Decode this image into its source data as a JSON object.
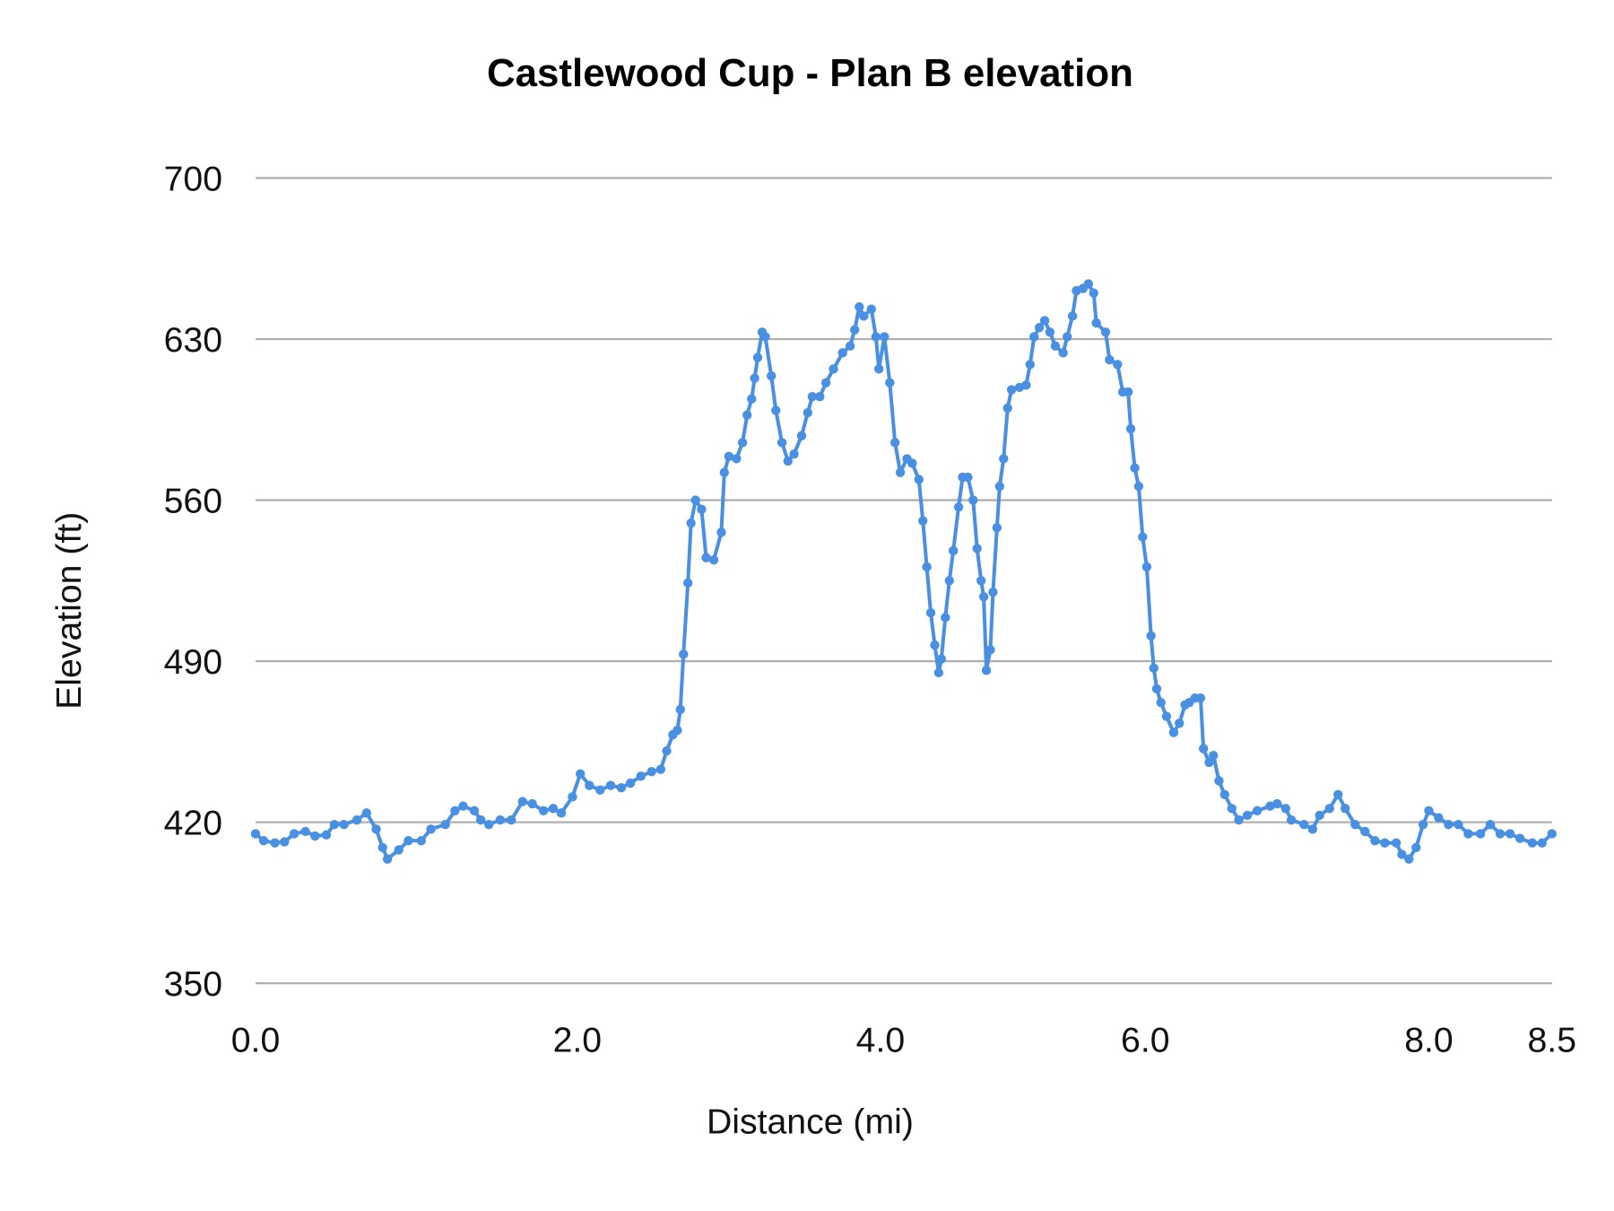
{
  "chart_data": {
    "type": "line",
    "title": "Castlewood Cup - Plan B elevation",
    "xlabel": "Distance (mi)",
    "ylabel": "Elevation (ft)",
    "ylim": [
      350,
      700
    ],
    "yticks": [
      350,
      420,
      490,
      560,
      630,
      700
    ],
    "ytick_labels": [
      "350",
      "420",
      "490",
      "560",
      "630",
      "700"
    ],
    "xticks": [
      0,
      2,
      4,
      6,
      8,
      8.5
    ],
    "xtick_labels": [
      "0.0",
      "2.0",
      "4.0",
      "6.0",
      "8.0",
      "8.5"
    ],
    "xlim": [
      0,
      8.5
    ],
    "grid": "horizontal",
    "legend": "none",
    "markers": true,
    "series_color": "#4a90e2",
    "series": [
      {
        "x": [
          0,
          0.05,
          0.12,
          0.18,
          0.24,
          0.31,
          0.37,
          0.44,
          0.49,
          0.55,
          0.63,
          0.69,
          0.75,
          0.79,
          0.82,
          0.89,
          0.95,
          1.03,
          1.09,
          1.18,
          1.24,
          1.29,
          1.36,
          1.4,
          1.45,
          1.52,
          1.59,
          1.66,
          1.72,
          1.79,
          1.85,
          1.9,
          1.97,
          2.02,
          2.08,
          2.15,
          2.22,
          2.29,
          2.35,
          2.42,
          2.49,
          2.55,
          2.59,
          2.63,
          2.66,
          2.68,
          2.7,
          2.73,
          2.75,
          2.78,
          2.82,
          2.85,
          2.9,
          2.95,
          2.97,
          3.0,
          3.05,
          3.09,
          3.12,
          3.15,
          3.17,
          3.19,
          3.22,
          3.24,
          3.28,
          3.31,
          3.35,
          3.39,
          3.43,
          3.48,
          3.52,
          3.55,
          3.6,
          3.64,
          3.69,
          3.75,
          3.8,
          3.83,
          3.86,
          3.89,
          3.94,
          3.97,
          3.99,
          4.03,
          4.07,
          4.11,
          4.15,
          4.2,
          4.24,
          4.29,
          4.32,
          4.35,
          4.38,
          4.41,
          4.44,
          4.46,
          4.49,
          4.52,
          4.55,
          4.59,
          4.62,
          4.66,
          4.7,
          4.73,
          4.76,
          4.78,
          4.8,
          4.83,
          4.85,
          4.88,
          4.9,
          4.93,
          4.96,
          4.99,
          5.05,
          5.1,
          5.13,
          5.16,
          5.2,
          5.24,
          5.28,
          5.32,
          5.38,
          5.41,
          5.45,
          5.48,
          5.53,
          5.57,
          5.61,
          5.63,
          5.7,
          5.73,
          5.79,
          5.83,
          5.87,
          5.89,
          5.92,
          5.95,
          5.98,
          6.01,
          6.04,
          6.06,
          6.08,
          6.11,
          6.15,
          6.2,
          6.24,
          6.28,
          6.31,
          6.35,
          6.39,
          6.41,
          6.45,
          6.48,
          6.52,
          6.56,
          6.61,
          6.66,
          6.72,
          6.79,
          6.88,
          6.93,
          6.99,
          7.03,
          7.12,
          7.18,
          7.23,
          7.3,
          7.36,
          7.41,
          7.48,
          7.55,
          7.62,
          7.69,
          7.77,
          7.81,
          7.86,
          7.91,
          7.96,
          8.0,
          8.04,
          8.08,
          8.12,
          8.16,
          8.21,
          8.25,
          8.29,
          8.33,
          8.37,
          8.42,
          8.46,
          8.5
        ],
        "y": [
          415,
          412,
          411,
          411.5,
          415,
          416,
          414,
          414.5,
          419,
          419,
          421,
          424,
          417,
          409,
          404,
          408,
          412,
          412,
          417,
          419,
          425,
          427,
          425,
          421,
          419,
          421,
          421,
          429,
          428,
          425,
          426,
          424,
          431,
          441,
          436,
          434,
          436,
          435,
          437,
          440,
          442,
          443,
          451,
          458,
          460,
          469,
          493,
          524,
          550,
          560,
          556,
          535,
          534,
          546,
          572,
          579,
          578,
          585,
          597,
          604,
          613,
          622,
          633,
          631,
          614,
          599,
          585,
          577,
          580,
          588,
          598,
          605,
          605,
          611,
          617,
          624,
          627,
          634,
          644,
          640,
          643,
          631,
          617,
          631,
          611,
          585,
          572,
          578,
          576,
          569,
          551,
          531,
          511,
          497,
          485,
          491,
          509,
          525,
          538,
          557,
          570,
          570,
          560,
          539,
          525,
          518,
          486,
          495,
          520,
          548,
          566,
          578,
          600,
          608,
          609,
          610,
          619,
          631,
          635,
          638,
          633,
          627,
          624,
          631,
          640,
          651,
          652,
          654,
          650,
          637,
          633,
          621,
          619,
          607,
          607,
          591,
          574,
          566,
          544,
          531,
          501,
          487,
          478,
          472,
          466,
          459,
          463,
          471,
          472,
          474,
          474,
          452,
          446,
          449,
          438,
          432,
          426,
          421,
          423,
          425,
          427,
          428,
          426,
          421,
          419,
          417,
          423,
          426,
          432,
          426,
          419,
          416,
          412,
          411,
          411,
          406,
          404,
          409,
          419,
          425,
          422,
          419,
          419,
          415,
          415,
          419,
          415,
          415,
          413,
          411,
          411,
          415
        ]
      }
    ]
  }
}
